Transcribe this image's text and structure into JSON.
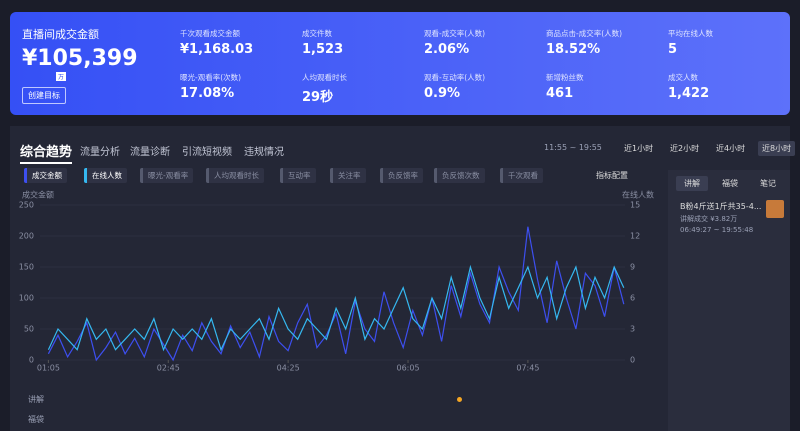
{
  "header": {
    "title": "直播间成交金额",
    "amount": "¥105,399",
    "unit": "万",
    "button": "创建目标",
    "metrics": [
      {
        "label": "千次观看成交金额",
        "value": "¥1,168.03"
      },
      {
        "label": "成交件数",
        "value": "1,523"
      },
      {
        "label": "观看-成交率(人数)",
        "value": "2.06%"
      },
      {
        "label": "商品点击-成交率(人数)",
        "value": "18.52%"
      },
      {
        "label": "平均在线人数",
        "value": "5"
      },
      {
        "label": "曝光-观看率(次数)",
        "value": "17.08%"
      },
      {
        "label": "人均观看时长",
        "value": "29秒"
      },
      {
        "label": "观看-互动率(人数)",
        "value": "0.9%"
      },
      {
        "label": "新增粉丝数",
        "value": "461"
      },
      {
        "label": "成交人数",
        "value": "1,422"
      }
    ]
  },
  "tabs": [
    "综合趋势",
    "流量分析",
    "流量诊断",
    "引流短视频",
    "违规情况"
  ],
  "time_range": "11:55 ~ 19:55",
  "range_buttons": [
    "近1小时",
    "近2小时",
    "近4小时",
    "近8小时"
  ],
  "metric_chips": [
    "成交金额",
    "在线人数",
    "曝光-观看率",
    "人均观看时长",
    "互动率",
    "关注率",
    "负反馈率",
    "负反馈次数",
    "千次观看"
  ],
  "config_button": "指标配置",
  "chart_data": {
    "type": "line",
    "y_axis_label": "成交金额",
    "y2_axis_label": "在线人数",
    "x": [
      65,
      73,
      81,
      89,
      97,
      105,
      113,
      121,
      129,
      137,
      145,
      153,
      161,
      169,
      177,
      185,
      193,
      201,
      209,
      217,
      225,
      233,
      241,
      249,
      257,
      265,
      273,
      281,
      289,
      297,
      305,
      313,
      321,
      329,
      337,
      345,
      353,
      361,
      369,
      377,
      385,
      393,
      401,
      409,
      417,
      425,
      433,
      441,
      449,
      457,
      465,
      473,
      481,
      489,
      497,
      505,
      513,
      521,
      529,
      537,
      545
    ],
    "xlim": [
      58,
      546
    ],
    "xticks": [
      {
        "value": 65,
        "label": "01:05"
      },
      {
        "value": 165,
        "label": "02:45"
      },
      {
        "value": 265,
        "label": "04:25"
      },
      {
        "value": 365,
        "label": "06:05"
      },
      {
        "value": 465,
        "label": "07:45"
      }
    ],
    "ylim": [
      0,
      250
    ],
    "yticks": [
      0,
      50,
      100,
      150,
      200,
      250
    ],
    "y2lim": [
      0,
      15
    ],
    "y2ticks": [
      0,
      3,
      6,
      9,
      12,
      15
    ],
    "grid": true,
    "series": [
      {
        "name": "成交金额",
        "color": "#3d4ff0",
        "values": [
          10,
          40,
          5,
          30,
          60,
          0,
          20,
          45,
          10,
          35,
          5,
          50,
          25,
          0,
          40,
          15,
          60,
          30,
          10,
          55,
          20,
          45,
          5,
          70,
          30,
          15,
          60,
          90,
          20,
          40,
          75,
          10,
          95,
          50,
          30,
          110,
          60,
          20,
          80,
          40,
          100,
          30,
          120,
          70,
          140,
          90,
          60,
          150,
          110,
          80,
          215,
          130,
          60,
          160,
          100,
          50,
          140,
          120,
          70,
          150,
          90
        ]
      },
      {
        "name": "在线人数",
        "color": "#35b8f0",
        "axis": "y2",
        "values": [
          1,
          3,
          2,
          1,
          4,
          2,
          3,
          1,
          2,
          3,
          2,
          4,
          1,
          3,
          2,
          3,
          2,
          4,
          1,
          3,
          2,
          3,
          4,
          2,
          5,
          3,
          2,
          4,
          3,
          2,
          5,
          3,
          6,
          2,
          4,
          3,
          5,
          7,
          4,
          3,
          6,
          4,
          8,
          5,
          9,
          6,
          4,
          8,
          5,
          7,
          9,
          6,
          8,
          4,
          7,
          9,
          5,
          8,
          6,
          9,
          7
        ]
      }
    ]
  },
  "side_tabs": [
    "讲解",
    "福袋",
    "笔记"
  ],
  "side_item": {
    "title": "B粉4斤送1斤共35-4...",
    "sub": "讲解成交 ¥3.82万",
    "time": "06:49:27 ~ 19:55:48"
  },
  "bottom_rows": [
    "讲解",
    "福袋"
  ]
}
